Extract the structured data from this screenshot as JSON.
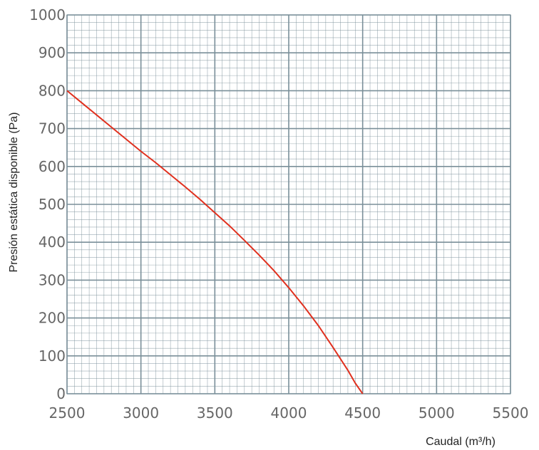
{
  "chart_data": {
    "type": "line",
    "title": "",
    "xlabel": "Caudal (m³/h)",
    "ylabel": "Presión estática disponible (Pa)",
    "xlim": [
      2500,
      5500
    ],
    "ylim": [
      0,
      1000
    ],
    "x_ticks": [
      "2500",
      "3000",
      "3500",
      "4000",
      "4500",
      "5000",
      "5500"
    ],
    "y_ticks": [
      "0",
      "100",
      "200",
      "300",
      "400",
      "500",
      "600",
      "700",
      "800",
      "900",
      "1000"
    ],
    "grid": true,
    "line_color": "#e0301e",
    "grid_color": "#7a8f99",
    "series": [
      {
        "x": [
          2500,
          2600,
          2700,
          2800,
          2900,
          3000,
          3100,
          3200,
          3300,
          3400,
          3500,
          3600,
          3700,
          3800,
          3900,
          4000,
          4100,
          4200,
          4300,
          4400,
          4450,
          4500
        ],
        "y": [
          800,
          768,
          736,
          704,
          672,
          640,
          610,
          578,
          546,
          513,
          478,
          443,
          405,
          366,
          325,
          280,
          232,
          180,
          122,
          62,
          28,
          0
        ]
      }
    ]
  }
}
